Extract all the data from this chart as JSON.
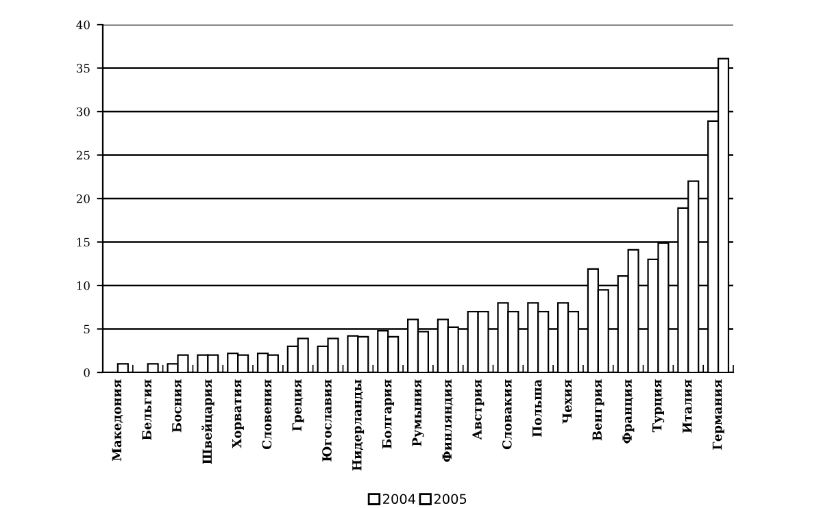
{
  "chart_data": {
    "type": "bar",
    "categories": [
      "Македония",
      "Бельгия",
      "Босния",
      "Швейцария",
      "Хорватия",
      "Словения",
      "Греция",
      "Югославия",
      "Нидерланды",
      "Болгария",
      "Румыния",
      "Финляндия",
      "Австрия",
      "Словакия",
      "Польша",
      "Чехия",
      "Венгрия",
      "Франция",
      "Турция",
      "Италия",
      "Германия"
    ],
    "series": [
      {
        "name": "2004",
        "color": "#ffffff",
        "values": [
          null,
          null,
          1.0,
          2.0,
          2.2,
          2.2,
          3.0,
          3.0,
          4.2,
          4.8,
          6.1,
          6.1,
          7.0,
          8.0,
          8.0,
          8.0,
          11.9,
          11.1,
          13.0,
          18.9,
          28.9
        ]
      },
      {
        "name": "2005",
        "color": "#ffffff",
        "values": [
          1.0,
          1.0,
          2.0,
          2.0,
          2.0,
          2.0,
          3.9,
          3.9,
          4.1,
          4.1,
          4.7,
          5.2,
          7.0,
          7.0,
          7.0,
          7.0,
          9.5,
          14.1,
          14.9,
          22.0,
          36.1
        ]
      }
    ],
    "ylim": [
      0,
      40
    ],
    "yticks": [
      0,
      5,
      10,
      15,
      20,
      25,
      30,
      35,
      40
    ],
    "grid": "y",
    "legend": "bottom"
  }
}
